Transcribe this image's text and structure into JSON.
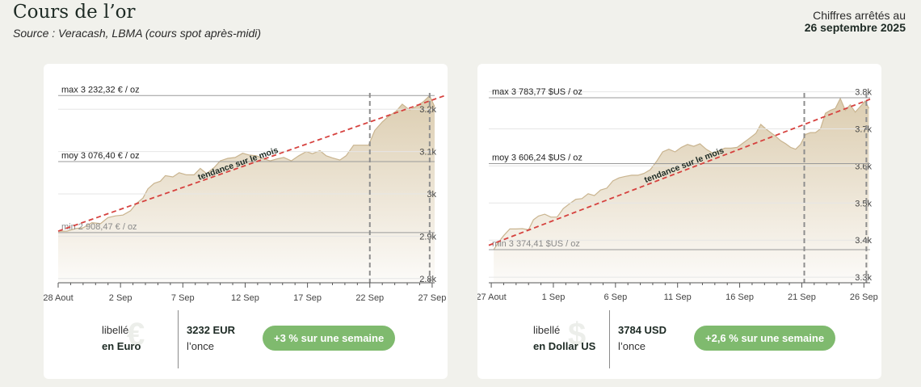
{
  "header": {
    "title": "Cours de l’or",
    "source": "Source : Veracash, LBMA (cours spot après-midi)",
    "date_label": "Chiffres arrêtés au",
    "date_value": "26 septembre 2025"
  },
  "colors": {
    "background": "#f1f1ec",
    "area_fill": "#dccdb0",
    "area_line": "#c9b48f",
    "trend_line": "#d6423f",
    "pill": "#7fba6e"
  },
  "chart_data": [
    {
      "type": "area",
      "currency_symbol": "€",
      "x_tick_labels": [
        "28 Aout",
        "2 Sep",
        "7 Sep",
        "12 Sep",
        "17 Sep",
        "22 Sep",
        "27 Sep"
      ],
      "x_ticks_day": [
        0,
        5,
        10,
        15,
        20,
        25,
        30
      ],
      "xlim": [
        0,
        30.2
      ],
      "y_tick_labels": [
        "2.8k",
        "2.9k",
        "3k",
        "3.1k",
        "3.2k"
      ],
      "y_tick_values": [
        2800,
        2900,
        3000,
        3100,
        3200
      ],
      "ylim": [
        2790,
        3250
      ],
      "week_markers_day": [
        25,
        29.8
      ],
      "max_label": "max 3 232,32 € / oz",
      "max_value": 3232.32,
      "mean_label": "moy 3 076,40 € / oz",
      "mean_value": 3076.4,
      "min_label": "min 2 908,47 € / oz",
      "min_value": 2908.47,
      "trend_label": "tendance sur le mois",
      "trend": [
        [
          0,
          2912
        ],
        [
          31,
          3232
        ]
      ],
      "points": [
        [
          0,
          2912
        ],
        [
          0.7,
          2912
        ],
        [
          1.4,
          2918
        ],
        [
          2,
          2920
        ],
        [
          2.7,
          2932
        ],
        [
          3.4,
          2930
        ],
        [
          4,
          2944
        ],
        [
          4.6,
          2948
        ],
        [
          5.2,
          2950
        ],
        [
          5.8,
          2960
        ],
        [
          6.3,
          2978
        ],
        [
          6.8,
          2990
        ],
        [
          7.2,
          3012
        ],
        [
          7.7,
          3025
        ],
        [
          8.2,
          3030
        ],
        [
          8.6,
          3043
        ],
        [
          9.2,
          3040
        ],
        [
          9.7,
          3050
        ],
        [
          10.3,
          3045
        ],
        [
          10.9,
          3045
        ],
        [
          11.4,
          3060
        ],
        [
          11.9,
          3048
        ],
        [
          12.5,
          3062
        ],
        [
          13,
          3078
        ],
        [
          13.6,
          3084
        ],
        [
          14.2,
          3086
        ],
        [
          14.8,
          3096
        ],
        [
          15.3,
          3092
        ],
        [
          15.9,
          3090
        ],
        [
          16.5,
          3083
        ],
        [
          17,
          3078
        ],
        [
          17.6,
          3083
        ],
        [
          18.1,
          3086
        ],
        [
          18.7,
          3078
        ],
        [
          19.3,
          3090
        ],
        [
          19.9,
          3100
        ],
        [
          20.4,
          3095
        ],
        [
          21,
          3102
        ],
        [
          21.5,
          3090
        ],
        [
          22,
          3085
        ],
        [
          22.6,
          3080
        ],
        [
          23.1,
          3090
        ],
        [
          23.7,
          3115
        ],
        [
          24.3,
          3115
        ],
        [
          24.9,
          3115
        ],
        [
          25.4,
          3150
        ],
        [
          26,
          3170
        ],
        [
          26.5,
          3183
        ],
        [
          27.1,
          3195
        ],
        [
          27.6,
          3212
        ],
        [
          28.2,
          3198
        ],
        [
          28.8,
          3208
        ],
        [
          29.3,
          3218
        ],
        [
          29.8,
          3232
        ],
        [
          30.2,
          3206
        ]
      ]
    },
    {
      "type": "area",
      "currency_symbol": "$",
      "x_tick_labels": [
        "27 Aout",
        "1 Sep",
        "6 Sep",
        "11 Sep",
        "16 Sep",
        "21 Sep",
        "26 Sep"
      ],
      "x_ticks_day": [
        0,
        5,
        10,
        15,
        20,
        25,
        30
      ],
      "xlim": [
        -0.2,
        30.5
      ],
      "y_tick_labels": [
        "3.3k",
        "3.4k",
        "3.5k",
        "3.6k",
        "3.7k",
        "3.8k"
      ],
      "y_tick_values": [
        3300,
        3400,
        3500,
        3600,
        3700,
        3800
      ],
      "ylim": [
        3285,
        3810
      ],
      "week_markers_day": [
        25.2,
        30.2
      ],
      "max_label": "max 3 783,77 $US / oz",
      "max_value": 3783.77,
      "mean_label": "moy 3 606,24 $US / oz",
      "mean_value": 3606.24,
      "min_label": "min 3 374,41 $US / oz",
      "min_value": 3374.41,
      "trend_label": "tendance sur le mois",
      "trend": [
        [
          -0.2,
          3386
        ],
        [
          30.5,
          3780
        ]
      ],
      "points": [
        [
          0.2,
          3374
        ],
        [
          0.6,
          3395
        ],
        [
          1,
          3412
        ],
        [
          1.5,
          3430
        ],
        [
          2,
          3430
        ],
        [
          2.5,
          3431
        ],
        [
          3,
          3428
        ],
        [
          3.4,
          3455
        ],
        [
          3.8,
          3465
        ],
        [
          4.3,
          3470
        ],
        [
          4.8,
          3462
        ],
        [
          5.3,
          3462
        ],
        [
          5.8,
          3485
        ],
        [
          6.3,
          3498
        ],
        [
          6.8,
          3510
        ],
        [
          7.3,
          3512
        ],
        [
          7.8,
          3525
        ],
        [
          8.3,
          3520
        ],
        [
          8.8,
          3535
        ],
        [
          9.3,
          3540
        ],
        [
          9.8,
          3560
        ],
        [
          10.3,
          3568
        ],
        [
          10.8,
          3572
        ],
        [
          11.3,
          3575
        ],
        [
          11.8,
          3575
        ],
        [
          12.3,
          3580
        ],
        [
          12.8,
          3590
        ],
        [
          13.3,
          3612
        ],
        [
          13.8,
          3638
        ],
        [
          14.3,
          3645
        ],
        [
          14.8,
          3638
        ],
        [
          15.3,
          3650
        ],
        [
          15.8,
          3658
        ],
        [
          16.3,
          3653
        ],
        [
          16.8,
          3660
        ],
        [
          17.3,
          3645
        ],
        [
          17.8,
          3635
        ],
        [
          18.3,
          3640
        ],
        [
          18.8,
          3648
        ],
        [
          19.3,
          3648
        ],
        [
          19.8,
          3650
        ],
        [
          20.2,
          3660
        ],
        [
          20.6,
          3670
        ],
        [
          21,
          3680
        ],
        [
          21.3,
          3688
        ],
        [
          21.7,
          3712
        ],
        [
          22.1,
          3700
        ],
        [
          22.5,
          3690
        ],
        [
          22.9,
          3680
        ],
        [
          23.3,
          3668
        ],
        [
          23.7,
          3660
        ],
        [
          24.1,
          3650
        ],
        [
          24.5,
          3645
        ],
        [
          24.9,
          3658
        ],
        [
          25.3,
          3685
        ],
        [
          25.7,
          3690
        ],
        [
          26.1,
          3690
        ],
        [
          26.5,
          3700
        ],
        [
          26.9,
          3742
        ],
        [
          27.3,
          3750
        ],
        [
          27.7,
          3755
        ],
        [
          28.1,
          3782
        ],
        [
          28.5,
          3750
        ],
        [
          28.9,
          3765
        ],
        [
          29.3,
          3745
        ],
        [
          29.7,
          3760
        ],
        [
          30.1,
          3775
        ],
        [
          30.4,
          3755
        ]
      ]
    }
  ],
  "cards": [
    {
      "unit_label": "libellé",
      "unit_name": "en Euro",
      "price": "3232 EUR",
      "price_unit": "l’once",
      "change": "+3 % sur une semaine"
    },
    {
      "unit_label": "libellé",
      "unit_name": "en Dollar US",
      "price": "3784 USD",
      "price_unit": "l’once",
      "change": "+2,6 % sur une semaine"
    }
  ]
}
